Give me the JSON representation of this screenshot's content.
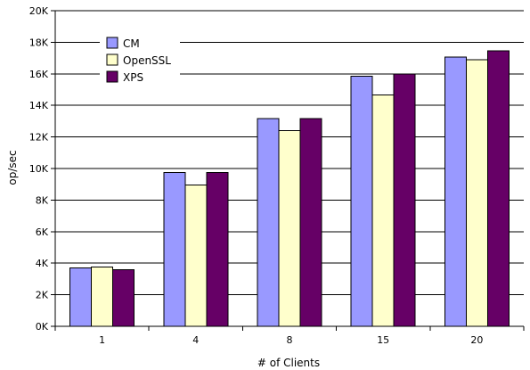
{
  "chart_data": {
    "type": "bar",
    "xlabel": "# of Clients",
    "ylabel": "op/sec",
    "categories": [
      "1",
      "4",
      "8",
      "15",
      "20"
    ],
    "series": [
      {
        "name": "CM",
        "values": [
          3700,
          9750,
          13150,
          15850,
          17050
        ],
        "color": "#9999ff"
      },
      {
        "name": "OpenSSL",
        "values": [
          3750,
          8950,
          12400,
          14650,
          16900
        ],
        "color": "#ffffcc"
      },
      {
        "name": "XPS",
        "values": [
          3600,
          9750,
          13150,
          16000,
          17450
        ],
        "color": "#660066"
      }
    ],
    "ylim": [
      0,
      20000
    ],
    "y_ticks": [
      0,
      2000,
      4000,
      6000,
      8000,
      10000,
      12000,
      14000,
      16000,
      18000,
      20000
    ],
    "y_tick_labels": [
      "0K",
      "2K",
      "4K",
      "6K",
      "8K",
      "10K",
      "12K",
      "14K",
      "16K",
      "18K",
      "20K"
    ],
    "grid": "horizontal",
    "legend": "top-left"
  }
}
